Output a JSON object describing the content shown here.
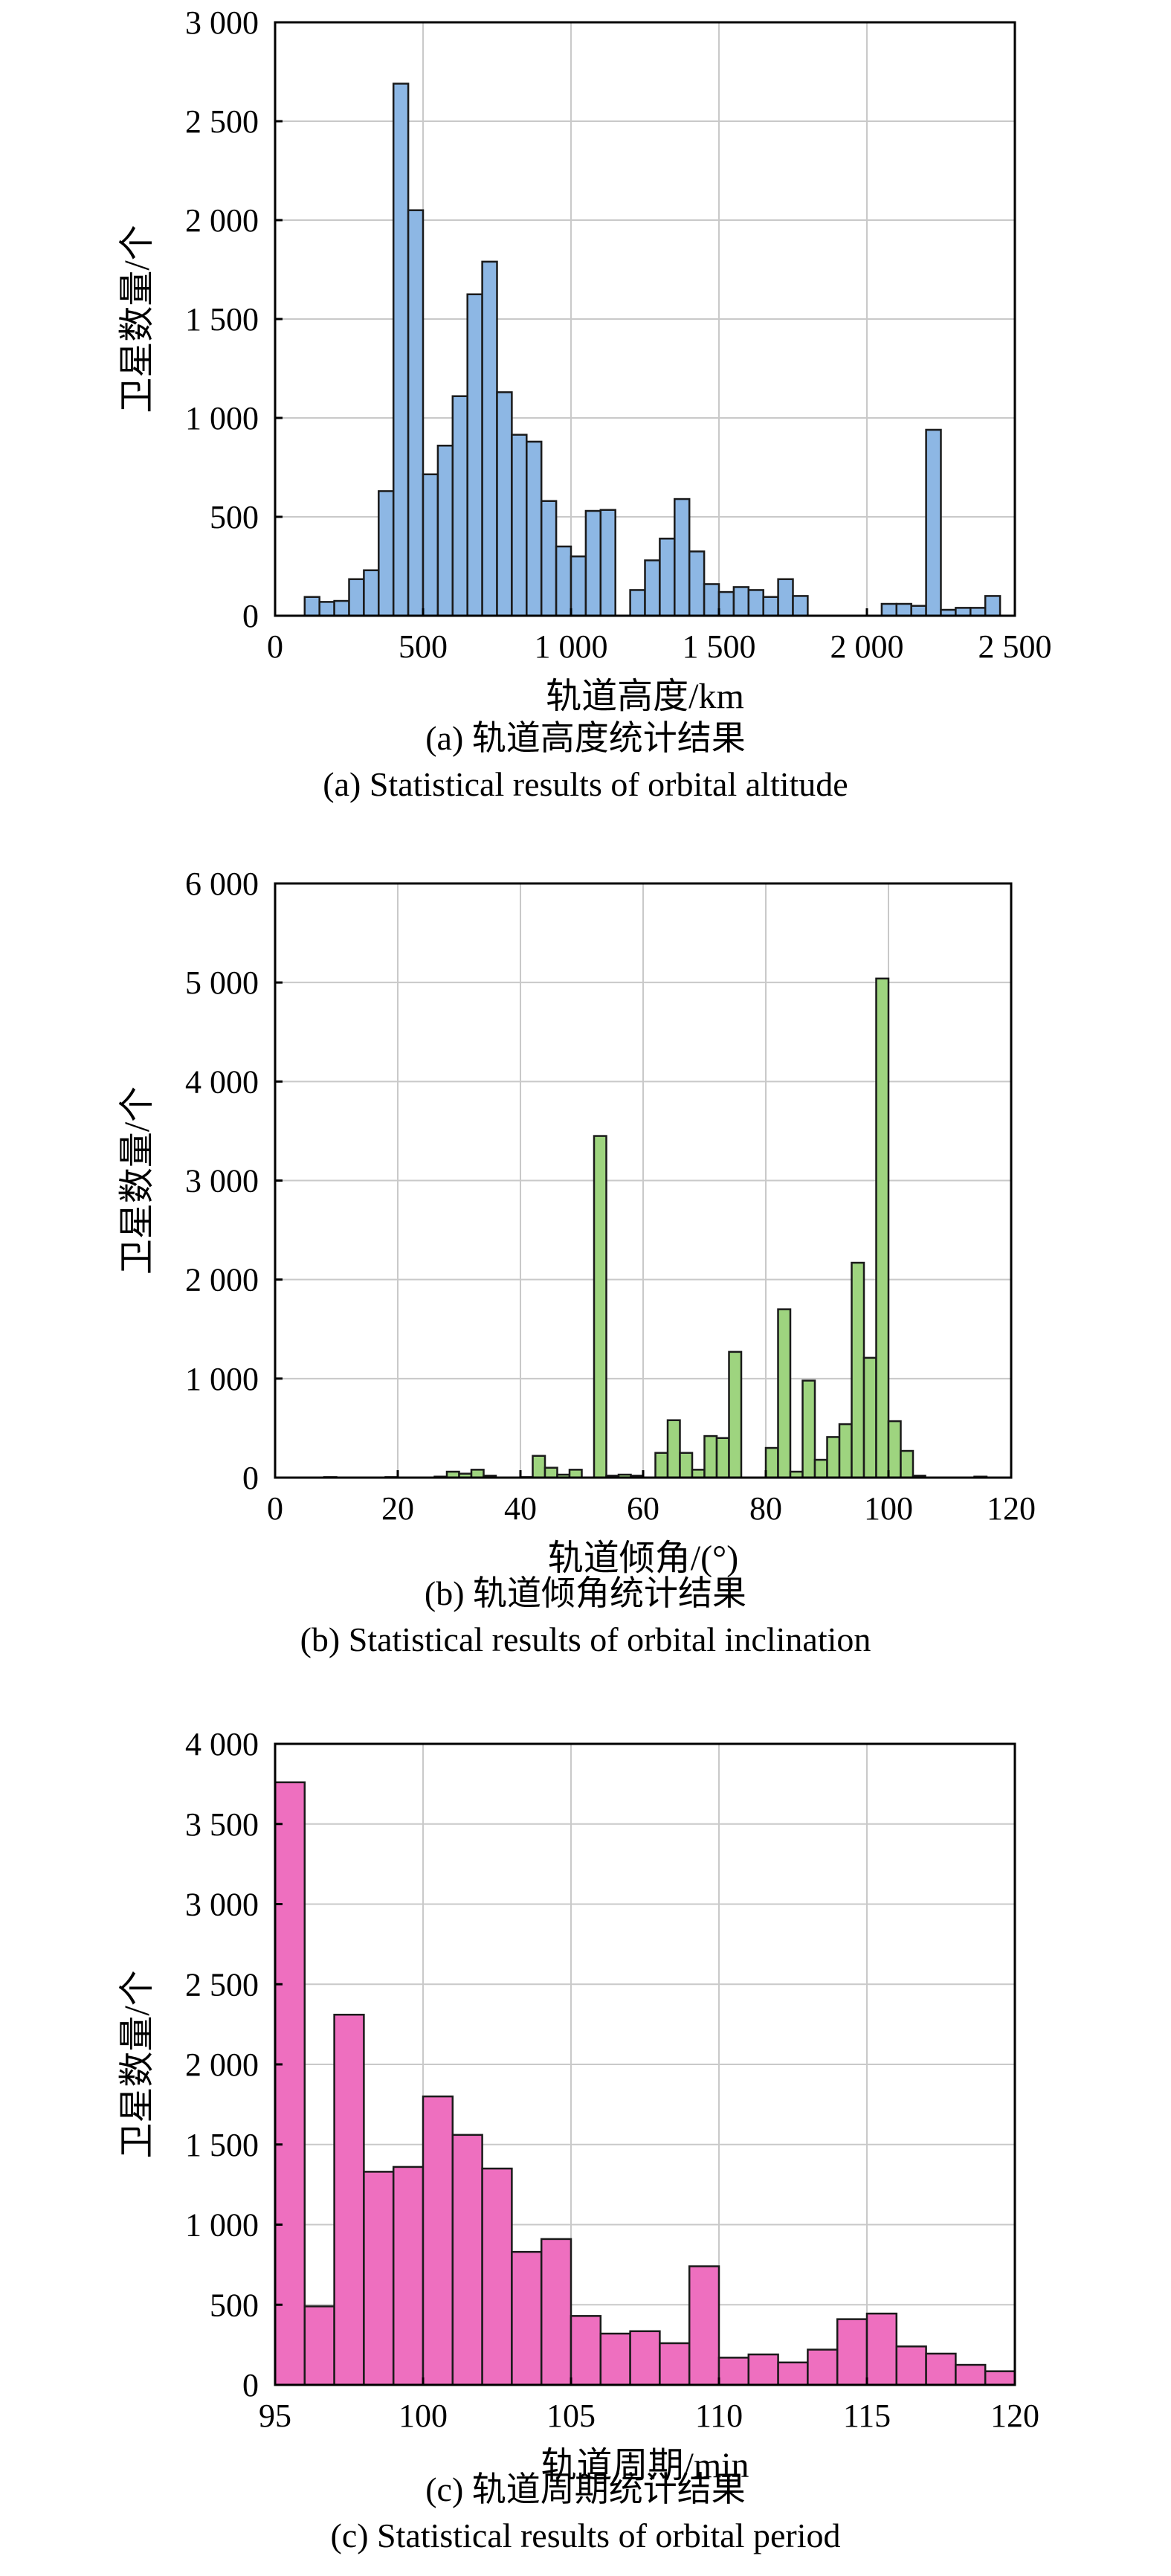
{
  "chart_data": [
    {
      "type": "bar",
      "subtype": "histogram",
      "xlabel": "轨道高度/km",
      "ylabel": "卫星数量/个",
      "caption_cn": "(a) 轨道高度统计结果",
      "caption_en": "(a) Statistical results of orbital altitude",
      "xlim": [
        0,
        2500
      ],
      "ylim": [
        0,
        3000
      ],
      "xticks": [
        0,
        500,
        1000,
        1500,
        2000,
        2500
      ],
      "xtick_labels": [
        "0",
        "500",
        "1 000",
        "1 500",
        "2 000",
        "2 500"
      ],
      "yticks": [
        0,
        500,
        1000,
        1500,
        2000,
        2500,
        3000
      ],
      "ytick_labels": [
        "0",
        "500",
        "1 000",
        "1 500",
        "2 000",
        "2 500",
        "3 000"
      ],
      "bin_start": 100,
      "bin_width": 50,
      "values": [
        95,
        70,
        75,
        185,
        230,
        630,
        2690,
        2050,
        715,
        860,
        1110,
        1625,
        1790,
        1130,
        915,
        880,
        580,
        350,
        300,
        530,
        535,
        0,
        130,
        280,
        390,
        590,
        325,
        160,
        120,
        145,
        130,
        95,
        185,
        100,
        0,
        0,
        0,
        0,
        0,
        60,
        60,
        50,
        940,
        30,
        40,
        40,
        100
      ],
      "bar_color": "#8db7e4",
      "grid": true
    },
    {
      "type": "bar",
      "subtype": "histogram",
      "xlabel": "轨道倾角/(°)",
      "ylabel": "卫星数量/个",
      "caption_cn": "(b) 轨道倾角统计结果",
      "caption_en": "(b) Statistical results of orbital inclination",
      "xlim": [
        0,
        120
      ],
      "ylim": [
        0,
        6000
      ],
      "xticks": [
        0,
        20,
        40,
        60,
        80,
        100,
        120
      ],
      "xtick_labels": [
        "0",
        "20",
        "40",
        "60",
        "80",
        "100",
        "120"
      ],
      "yticks": [
        0,
        1000,
        2000,
        3000,
        4000,
        5000,
        6000
      ],
      "ytick_labels": [
        "0",
        "1 000",
        "2 000",
        "3 000",
        "4 000",
        "5 000",
        "6 000"
      ],
      "bin_start": 0,
      "bin_width": 2,
      "values": [
        0,
        0,
        0,
        0,
        5,
        0,
        0,
        0,
        0,
        5,
        0,
        0,
        0,
        10,
        60,
        40,
        80,
        20,
        0,
        0,
        5,
        220,
        100,
        30,
        80,
        0,
        3450,
        20,
        30,
        20,
        0,
        250,
        580,
        250,
        80,
        420,
        400,
        1270,
        0,
        0,
        300,
        1700,
        60,
        980,
        180,
        410,
        540,
        2170,
        1210,
        5040,
        570,
        270,
        20,
        0,
        0,
        0,
        0,
        10,
        0,
        0
      ],
      "bar_color": "#9ed47f",
      "grid": true
    },
    {
      "type": "bar",
      "subtype": "histogram",
      "xlabel": "轨道周期/min",
      "ylabel": "卫星数量/个",
      "caption_cn": "(c) 轨道周期统计结果",
      "caption_en": "(c) Statistical results of orbital period",
      "xlim": [
        95,
        120
      ],
      "ylim": [
        0,
        4000
      ],
      "xticks": [
        95,
        100,
        105,
        110,
        115,
        120
      ],
      "xtick_labels": [
        "95",
        "100",
        "105",
        "110",
        "115",
        "120"
      ],
      "yticks": [
        0,
        500,
        1000,
        1500,
        2000,
        2500,
        3000,
        3500,
        4000
      ],
      "ytick_labels": [
        "0",
        "500",
        "1 000",
        "1 500",
        "2 000",
        "2 500",
        "3 000",
        "3 500",
        "4 000"
      ],
      "bin_start": 95,
      "bin_width": 1,
      "values": [
        3760,
        490,
        2310,
        1330,
        1360,
        1800,
        1560,
        1350,
        830,
        910,
        430,
        320,
        335,
        260,
        740,
        170,
        190,
        140,
        220,
        410,
        445,
        240,
        195,
        125,
        85
      ],
      "bar_color": "#ee6fbf",
      "grid": true
    }
  ]
}
